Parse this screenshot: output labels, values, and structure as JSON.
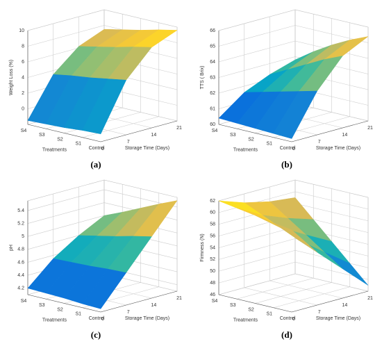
{
  "chart_data": [
    {
      "type": "surface",
      "label": "(a)",
      "zlabel": "Weight Loss (%)",
      "xlabel": "Treatments",
      "ylabel": "Storage Time (Days)",
      "categories": [
        "S4",
        "S3",
        "S2",
        "S1",
        "Control"
      ],
      "ylim": [
        0,
        21
      ],
      "yticks": [
        0,
        7,
        14,
        21
      ],
      "zlim": [
        -2,
        10
      ],
      "zticks": [
        0,
        2,
        4,
        6,
        8,
        10
      ],
      "values": [
        [
          -1.5,
          3.5,
          6.2,
          7.5
        ],
        [
          -1.4,
          3.9,
          6.7,
          8.0
        ],
        [
          -1.3,
          4.2,
          7.2,
          8.5
        ],
        [
          -1.1,
          4.6,
          7.8,
          9.1
        ],
        [
          -1.0,
          5.0,
          8.3,
          9.6
        ]
      ]
    },
    {
      "type": "surface",
      "label": "(b)",
      "zlabel": "TTS ( Brix)",
      "xlabel": "Treatments",
      "ylabel": "Storage Time (Days)",
      "categories": [
        "S4",
        "S3",
        "S2",
        "S1",
        "Control"
      ],
      "ylim": [
        0,
        21
      ],
      "yticks": [
        0,
        7,
        14,
        21
      ],
      "zlim": [
        60,
        66
      ],
      "zticks": [
        60,
        61,
        62,
        63,
        64,
        65,
        66
      ],
      "values": [
        [
          60.4,
          61.6,
          62.3,
          62.8
        ],
        [
          60.35,
          61.9,
          62.9,
          63.6
        ],
        [
          60.3,
          62.2,
          63.5,
          64.3
        ],
        [
          60.25,
          62.5,
          64.1,
          64.9
        ],
        [
          60.2,
          62.8,
          64.6,
          65.4
        ]
      ]
    },
    {
      "type": "surface",
      "label": "(c)",
      "zlabel": "pH",
      "xlabel": "Treatments",
      "ylabel": "Storage Time (Days)",
      "categories": [
        "S4",
        "S3",
        "S2",
        "S1",
        "Control"
      ],
      "ylim": [
        0,
        21
      ],
      "yticks": [
        0,
        7,
        14,
        21
      ],
      "zlim": [
        4.1,
        5.55
      ],
      "zticks": [
        4.2,
        4.4,
        4.6,
        4.8,
        5,
        5.2,
        5.4
      ],
      "values": [
        [
          4.2,
          4.55,
          4.8,
          5.0
        ],
        [
          4.19,
          4.56,
          4.86,
          5.12
        ],
        [
          4.18,
          4.57,
          4.92,
          5.25
        ],
        [
          4.16,
          4.59,
          4.99,
          5.38
        ],
        [
          4.15,
          4.6,
          5.05,
          5.5
        ]
      ]
    },
    {
      "type": "surface",
      "label": "(d)",
      "zlabel": "Firmness (N)",
      "xlabel": "Treatments",
      "ylabel": "Storage Time (Days)",
      "categories": [
        "S4",
        "S3",
        "S2",
        "S1",
        "Control"
      ],
      "ylim": [
        0,
        21
      ],
      "yticks": [
        0,
        7,
        14,
        21
      ],
      "zlim": [
        46,
        62
      ],
      "zticks": [
        46,
        48,
        50,
        52,
        54,
        56,
        58,
        60,
        62
      ],
      "values": [
        [
          62,
          60.5,
          59.5,
          59
        ],
        [
          61.5,
          59.1,
          57.4,
          56
        ],
        [
          61,
          57.7,
          55.3,
          53
        ],
        [
          60.5,
          56.3,
          53.1,
          50
        ],
        [
          60,
          55,
          51,
          47
        ]
      ]
    }
  ]
}
